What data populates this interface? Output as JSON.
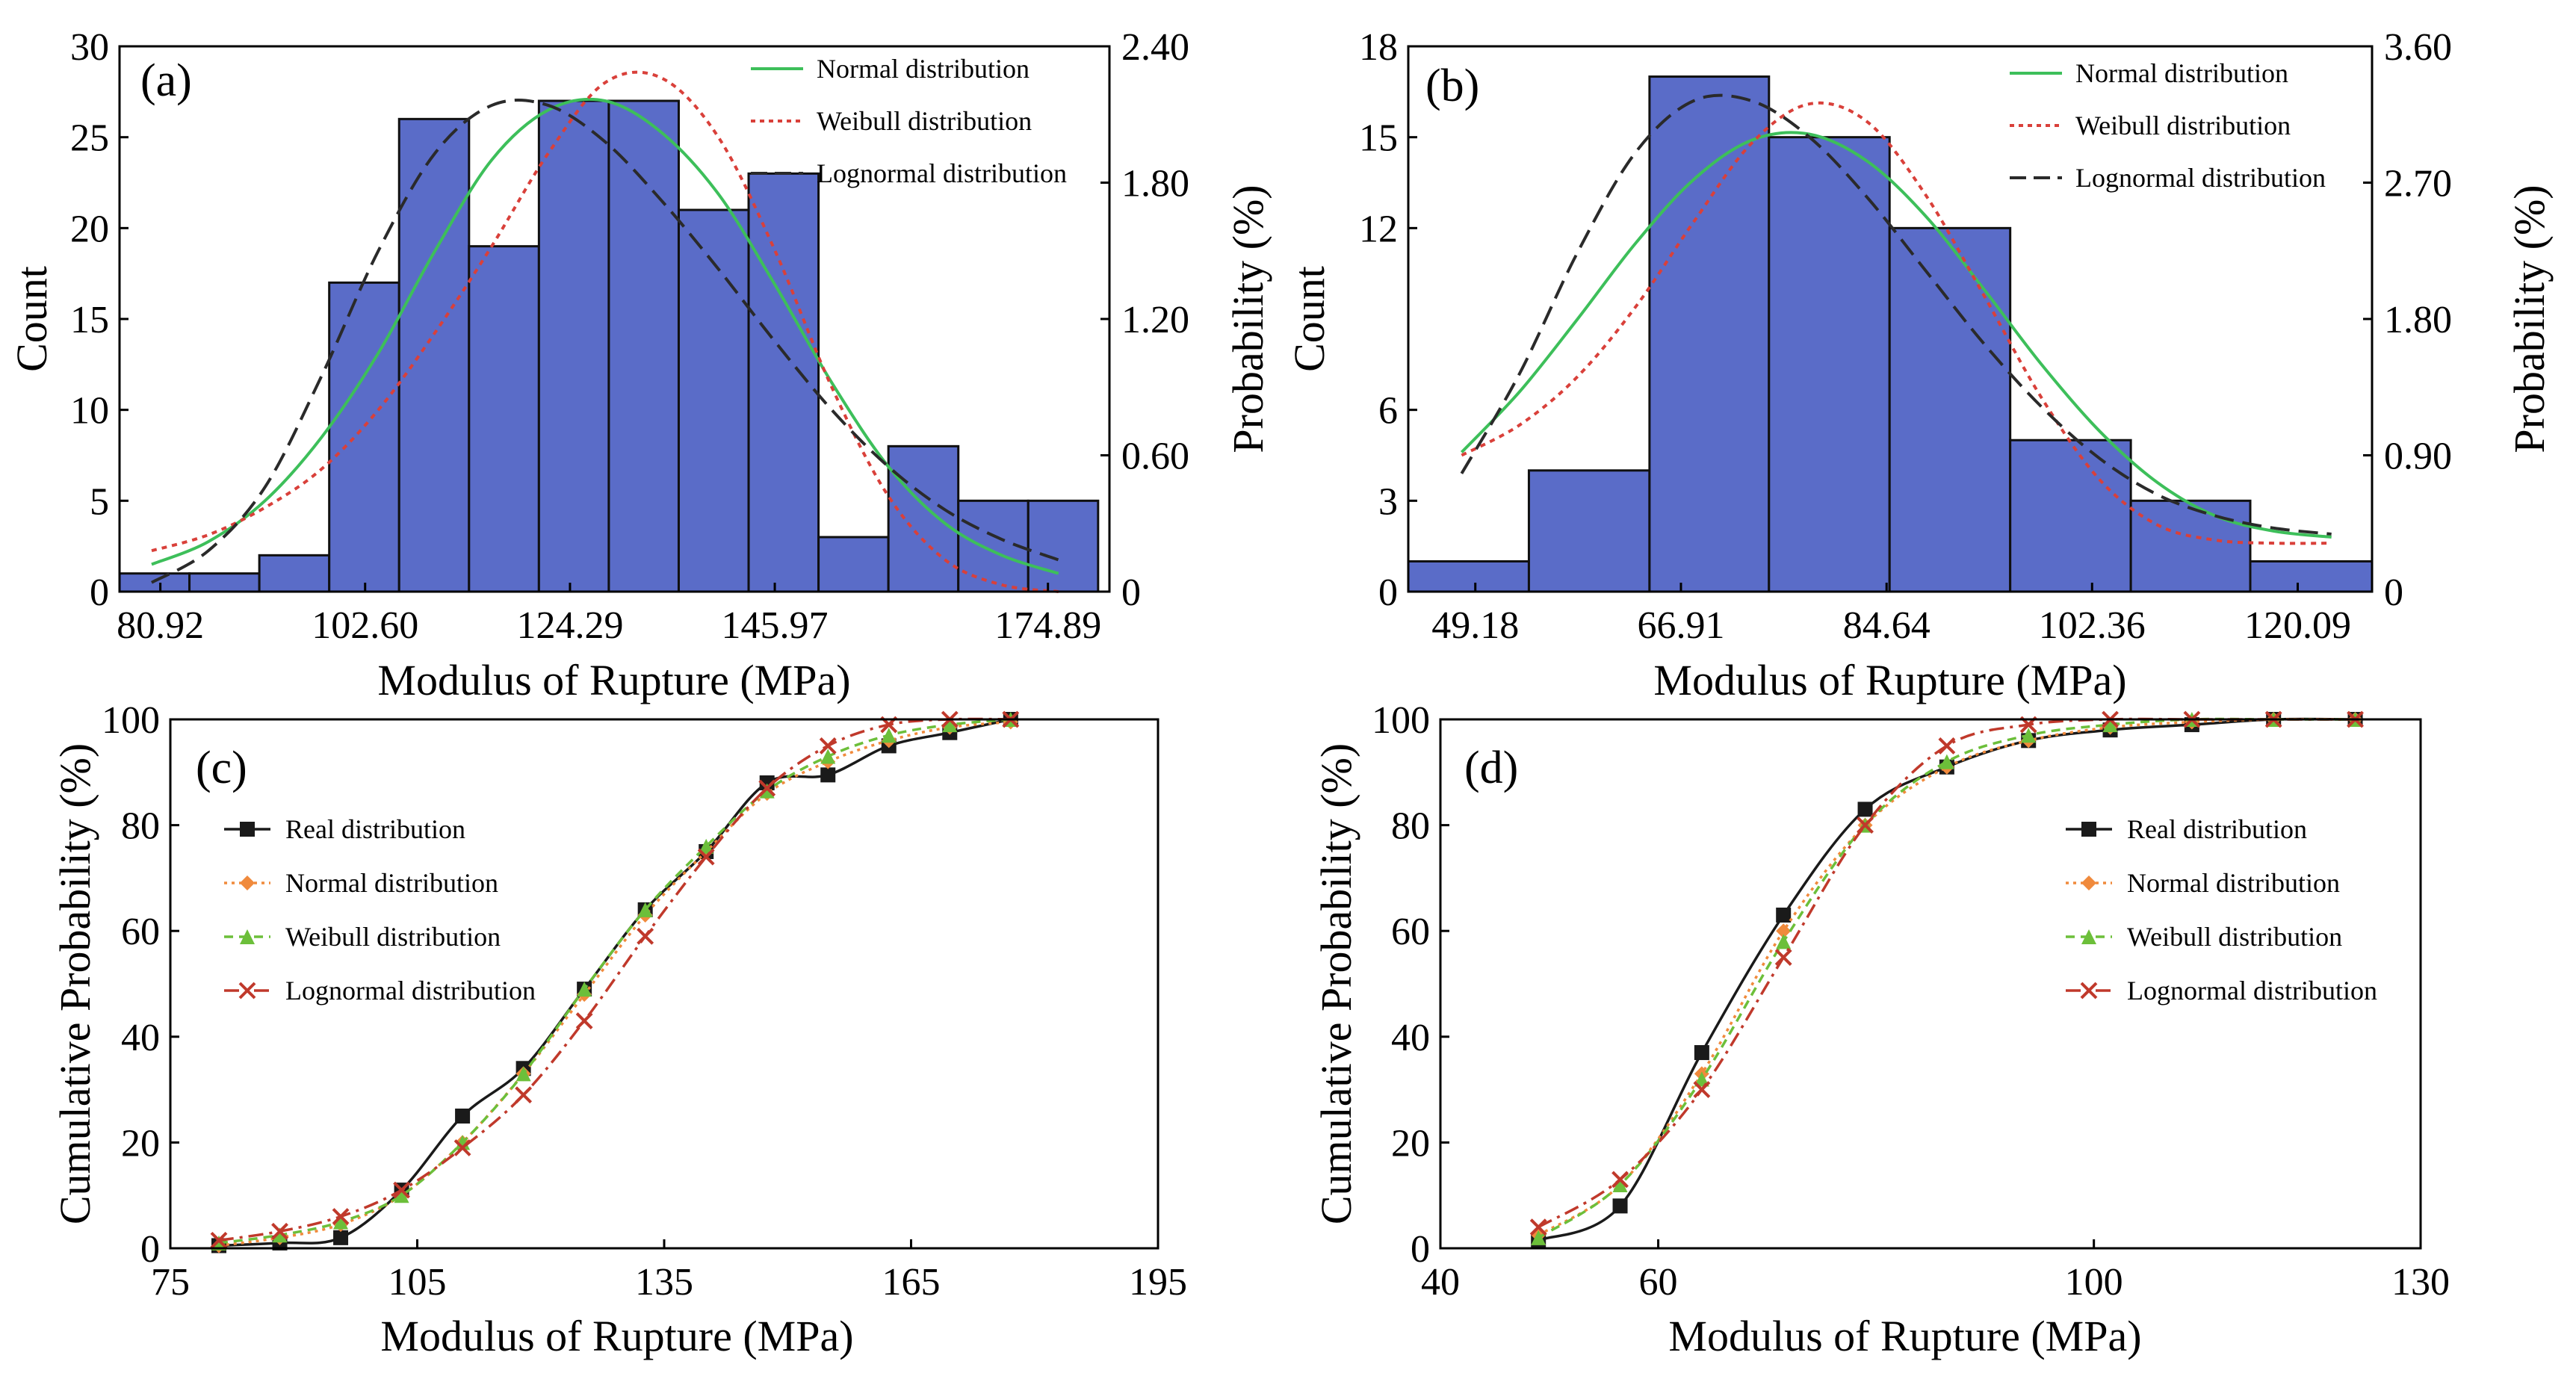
{
  "colors": {
    "bar_fill": "#5a6cc8",
    "normal": "#3dbf5a",
    "weibull": "#d9403a",
    "lognormal": "#2a2a2a",
    "real": "#1a1a1a",
    "normal_cdf": "#f08a3c",
    "weibull_cdf": "#6cbf3a",
    "lognormal_cdf": "#c0392b"
  },
  "chart_data": [
    {
      "panel": "(a)",
      "type": "bar",
      "xlabel": "Modulus of Rupture (MPa)",
      "ylabel": "Count",
      "ylabel_right": "Probability (%)",
      "xlim": [
        76.6,
        181.4
      ],
      "ylim": [
        0,
        30
      ],
      "ylim_right": [
        0,
        2.4
      ],
      "x_ticks": [
        80.92,
        102.6,
        124.29,
        145.97,
        174.89
      ],
      "x_tick_labels": [
        "80.92",
        "102.60",
        "124.29",
        "145.97",
        "174.89"
      ],
      "y_ticks": [
        0,
        5,
        10,
        15,
        20,
        25,
        30
      ],
      "y_tick_labels": [
        "0",
        "5",
        "10",
        "15",
        "20",
        "25",
        "30"
      ],
      "y_right_ticks": [
        0,
        0.6,
        1.2,
        1.8,
        2.4
      ],
      "y_right_tick_labels": [
        "0",
        "0.60",
        "1.20",
        "1.80",
        "2.40"
      ],
      "bin_edges": [
        76.6,
        84.0,
        91.4,
        98.8,
        106.2,
        113.6,
        121.0,
        128.4,
        135.8,
        143.2,
        150.6,
        158.0,
        165.4,
        172.8,
        180.2
      ],
      "values": [
        1,
        1,
        2,
        17,
        26,
        19,
        27,
        27,
        21,
        23,
        3,
        8,
        5,
        5
      ],
      "legend": [
        "Normal distribution",
        "Weibull distribution",
        "Lognormal distribution"
      ],
      "curves": {
        "normal": {
          "x": [
            80,
            86,
            92,
            98,
            104,
            110,
            116,
            122,
            128,
            134,
            140,
            146,
            152,
            158,
            164,
            170,
            176
          ],
          "y": [
            0.12,
            0.22,
            0.4,
            0.68,
            1.05,
            1.5,
            1.9,
            2.12,
            2.16,
            2.02,
            1.75,
            1.35,
            0.92,
            0.55,
            0.3,
            0.16,
            0.08
          ]
        },
        "weibull": {
          "x": [
            80,
            86,
            92,
            98,
            104,
            110,
            116,
            122,
            128,
            134,
            140,
            146,
            152,
            158,
            164,
            170,
            176
          ],
          "y": [
            0.18,
            0.25,
            0.37,
            0.54,
            0.8,
            1.14,
            1.52,
            1.93,
            2.24,
            2.26,
            2.0,
            1.5,
            0.9,
            0.42,
            0.14,
            0.03,
            0.0
          ]
        },
        "lognormal": {
          "x": [
            80,
            86,
            92,
            98,
            104,
            110,
            116,
            122,
            128,
            134,
            140,
            146,
            152,
            158,
            164,
            170,
            176
          ],
          "y": [
            0.04,
            0.18,
            0.46,
            0.95,
            1.5,
            1.93,
            2.14,
            2.14,
            1.98,
            1.72,
            1.42,
            1.1,
            0.8,
            0.55,
            0.36,
            0.23,
            0.14
          ]
        }
      }
    },
    {
      "panel": "(b)",
      "type": "bar",
      "xlabel": "Modulus of Rupture (MPa)",
      "ylabel": "Count",
      "ylabel_right": "Probability (%)",
      "xlim": [
        43.4,
        126.5
      ],
      "ylim": [
        0,
        18
      ],
      "ylim_right": [
        0,
        3.6
      ],
      "x_ticks": [
        49.18,
        66.91,
        84.64,
        102.36,
        120.09
      ],
      "x_tick_labels": [
        "49.18",
        "66.91",
        "84.64",
        "102.36",
        "120.09"
      ],
      "y_ticks": [
        0,
        3,
        6,
        12,
        15,
        18
      ],
      "y_tick_labels": [
        "0",
        "3",
        "6",
        "12",
        "15",
        "18"
      ],
      "y_right_ticks": [
        0,
        0.9,
        1.8,
        2.7,
        3.6
      ],
      "y_right_tick_labels": [
        "0",
        "0.90",
        "1.80",
        "2.70",
        "3.60"
      ],
      "bin_edges": [
        43.4,
        53.8,
        64.2,
        74.5,
        84.9,
        95.3,
        105.7,
        116.0,
        126.5
      ],
      "values": [
        1,
        4,
        17,
        15,
        12,
        5,
        3,
        1
      ],
      "legend": [
        "Normal distribution",
        "Weibull distribution",
        "Lognormal distribution"
      ],
      "curves": {
        "normal": {
          "x": [
            48,
            53,
            58,
            63,
            68,
            73,
            78,
            83,
            88,
            93,
            98,
            103,
            108,
            113,
            118,
            123
          ],
          "y": [
            0.92,
            1.32,
            1.8,
            2.3,
            2.72,
            2.98,
            3.02,
            2.84,
            2.48,
            2.0,
            1.5,
            1.06,
            0.72,
            0.5,
            0.4,
            0.36
          ]
        },
        "weibull": {
          "x": [
            48,
            53,
            58,
            63,
            68,
            73,
            78,
            83,
            88,
            93,
            98,
            103,
            108,
            113,
            118,
            123
          ],
          "y": [
            0.9,
            1.1,
            1.42,
            1.88,
            2.44,
            2.96,
            3.22,
            3.1,
            2.62,
            1.96,
            1.28,
            0.74,
            0.44,
            0.34,
            0.32,
            0.32
          ]
        },
        "lognormal": {
          "x": [
            48,
            53,
            58,
            63,
            68,
            73,
            78,
            83,
            88,
            93,
            98,
            103,
            108,
            113,
            118,
            123
          ],
          "y": [
            0.78,
            1.44,
            2.24,
            2.9,
            3.24,
            3.24,
            3.0,
            2.6,
            2.12,
            1.64,
            1.22,
            0.88,
            0.64,
            0.5,
            0.42,
            0.38
          ]
        }
      }
    },
    {
      "panel": "(c)",
      "type": "line",
      "xlabel": "Modulus of Rupture (MPa)",
      "ylabel": "Cumulative Probability (%)",
      "xlim": [
        75,
        195
      ],
      "ylim": [
        0,
        100
      ],
      "x_ticks": [
        75,
        105,
        135,
        165,
        195
      ],
      "x_tick_labels": [
        "75",
        "105",
        "135",
        "165",
        "195"
      ],
      "y_ticks": [
        0,
        20,
        40,
        60,
        80,
        100
      ],
      "y_tick_labels": [
        "0",
        "20",
        "40",
        "60",
        "80",
        "100"
      ],
      "x": [
        80.9,
        88.3,
        95.7,
        103.1,
        110.5,
        117.9,
        125.3,
        132.7,
        140.1,
        147.5,
        154.9,
        162.3,
        169.7,
        177.1
      ],
      "series": [
        {
          "name": "Real distribution",
          "marker": "square",
          "values": [
            0.5,
            1.0,
            2.0,
            11,
            25,
            34,
            49,
            64,
            75,
            88,
            89.5,
            95,
            97.5,
            100
          ]
        },
        {
          "name": "Normal distribution",
          "marker": "diamond",
          "values": [
            0.5,
            2,
            4.5,
            10,
            20,
            33,
            48,
            63,
            75,
            86,
            92,
            96,
            98.5,
            99.5
          ]
        },
        {
          "name": "Weibull distribution",
          "marker": "triangle",
          "values": [
            1,
            2.5,
            5,
            10,
            20,
            33,
            49,
            64,
            76,
            86.5,
            93,
            97,
            99,
            100
          ]
        },
        {
          "name": "Lognormal distribution",
          "marker": "cross",
          "values": [
            1.5,
            3.2,
            6,
            11,
            19,
            29,
            43,
            59,
            74,
            87,
            95,
            99,
            100,
            100
          ]
        }
      ]
    },
    {
      "panel": "(d)",
      "type": "line",
      "xlabel": "Modulus of Rupture (MPa)",
      "ylabel": "Cumulative Probability (%)",
      "xlim": [
        40,
        130
      ],
      "ylim": [
        0,
        100
      ],
      "x_ticks": [
        40,
        60,
        100,
        130
      ],
      "x_tick_labels": [
        "40",
        "60",
        "100",
        "130"
      ],
      "y_ticks": [
        0,
        20,
        40,
        60,
        80,
        100
      ],
      "y_tick_labels": [
        "0",
        "20",
        "40",
        "60",
        "80",
        "100"
      ],
      "x": [
        49,
        56.5,
        64,
        71.5,
        79,
        86.5,
        94,
        101.5,
        109,
        116.5,
        124
      ],
      "series": [
        {
          "name": "Real distribution",
          "marker": "square",
          "values": [
            1.5,
            8,
            37,
            63,
            83,
            91,
            96,
            98,
            99,
            100,
            100
          ]
        },
        {
          "name": "Normal distribution",
          "marker": "diamond",
          "values": [
            2.5,
            12,
            33,
            60,
            80,
            91,
            96,
            98.5,
            99.5,
            100,
            100
          ]
        },
        {
          "name": "Weibull distribution",
          "marker": "triangle",
          "values": [
            2,
            12,
            32,
            58,
            80,
            92,
            97,
            99,
            100,
            100,
            100
          ]
        },
        {
          "name": "Lognormal distribution",
          "marker": "cross",
          "values": [
            4,
            13,
            30,
            55,
            80,
            95,
            99,
            100,
            100,
            100,
            100
          ]
        }
      ]
    }
  ]
}
